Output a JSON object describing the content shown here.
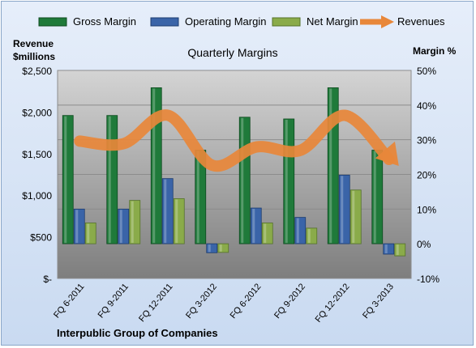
{
  "chart_data": {
    "type": "bar",
    "title": "Quarterly Margins",
    "left_axis_label_line1": "Revenue",
    "left_axis_label_line2": "$millions",
    "right_axis_label": "Margin %",
    "footer": "Interpublic Group of Companies",
    "categories": [
      "FQ 6-2011",
      "FQ 9-2011",
      "FQ 12-2011",
      "FQ 3-2012",
      "FQ 6-2012",
      "FQ 9-2012",
      "FQ 12-2012",
      "FQ 3-2013"
    ],
    "left_axis": {
      "min": 0,
      "max": 2500,
      "ticks": [
        "$-",
        "$500",
        "$1,000",
        "$1,500",
        "$2,000",
        "$2,500"
      ],
      "tick_values": [
        0,
        500,
        1000,
        1500,
        2000,
        2500
      ]
    },
    "right_axis": {
      "min": -10,
      "max": 50,
      "ticks": [
        "-10%",
        "0%",
        "10%",
        "20%",
        "30%",
        "40%",
        "50%"
      ],
      "tick_values": [
        -10,
        0,
        10,
        20,
        30,
        40,
        50
      ]
    },
    "series": [
      {
        "name": "Gross Margin",
        "axis": "right",
        "kind": "bar",
        "color": "#1f7a3a",
        "values": [
          37,
          37,
          45,
          27,
          36.5,
          36,
          45,
          27
        ]
      },
      {
        "name": "Operating Margin",
        "axis": "right",
        "kind": "bar",
        "color": "#3a64a8",
        "values": [
          10,
          10,
          18.8,
          -2.6,
          10.3,
          7.6,
          19.8,
          -3
        ]
      },
      {
        "name": "Net Margin",
        "axis": "right",
        "kind": "bar",
        "color": "#8aab4a",
        "values": [
          6,
          12.5,
          13,
          -2.5,
          6,
          4.5,
          15.5,
          -3.5
        ]
      },
      {
        "name": "Revenues",
        "axis": "left",
        "kind": "line",
        "color": "#e8873a",
        "values": [
          1650,
          1620,
          1960,
          1360,
          1580,
          1540,
          1960,
          1430
        ]
      }
    ],
    "grid": true,
    "legend_position": "top"
  }
}
